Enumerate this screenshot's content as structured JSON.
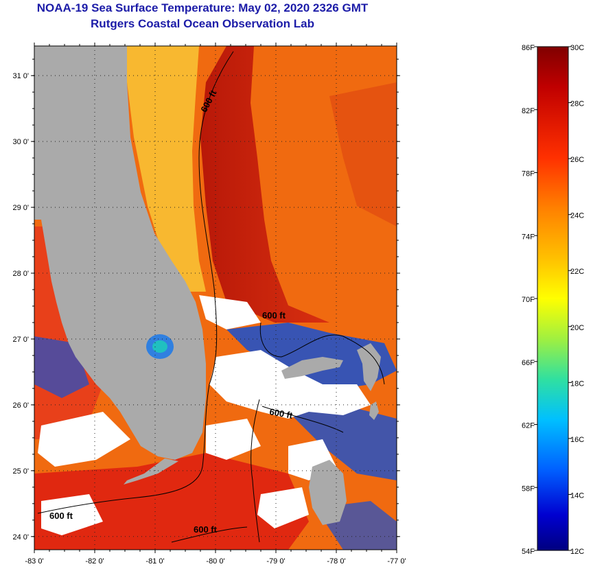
{
  "title": "NOAA-19 Sea Surface Temperature:  May 02, 2020 2326 GMT",
  "subtitle": "Rutgers Coastal Ocean Observation Lab",
  "map": {
    "lat_labels": [
      "31 0'",
      "30 0'",
      "29 0'",
      "28 0'",
      "27 0'",
      "26 0'",
      "25 0'",
      "24 0'"
    ],
    "lon_labels": [
      "-83 0'",
      "-82 0'",
      "-81 0'",
      "-80 0'",
      "-79 0'",
      "-78 0'",
      "-77 0'"
    ],
    "contour_label": "600 ft",
    "colors": {
      "land": "#aaaaaa",
      "cloud": "#ffffff",
      "gulf_stream": "#c81e0a",
      "warm_water": "#f06a10",
      "coastal_water": "#f8b830",
      "cool_water": "#1850d0"
    }
  },
  "colorbar": {
    "fahrenheit": [
      "86F",
      "82F",
      "78F",
      "74F",
      "70F",
      "66F",
      "62F",
      "58F",
      "54F"
    ],
    "celsius": [
      "30C",
      "28C",
      "26C",
      "24C",
      "22C",
      "20C",
      "18C",
      "16C",
      "14C",
      "12C"
    ],
    "range_c": [
      12,
      30
    ],
    "range_f": [
      54,
      86
    ]
  }
}
